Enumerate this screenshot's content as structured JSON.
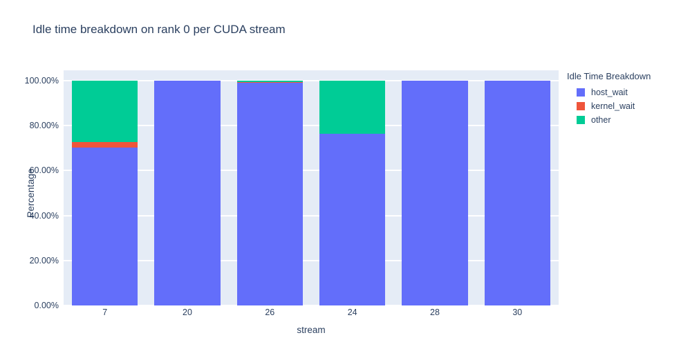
{
  "chart_data": {
    "type": "bar",
    "barmode": "stacked-percent",
    "title": "Idle time breakdown on rank 0 per CUDA stream",
    "xlabel": "stream",
    "ylabel": "Percentage",
    "legend_title": "Idle Time Breakdown",
    "legend_position": "right",
    "grid": true,
    "plot_bg_color": "#E5ECF6",
    "gridline_color": "#ffffff",
    "text_color": "#2a3f5f",
    "ylim": [
      0,
      103.7
    ],
    "yticks": [
      {
        "value": 0,
        "label": "0.00%"
      },
      {
        "value": 20,
        "label": "20.00%"
      },
      {
        "value": 40,
        "label": "40.00%"
      },
      {
        "value": 60,
        "label": "60.00%"
      },
      {
        "value": 80,
        "label": "80.00%"
      },
      {
        "value": 100,
        "label": "100.00%"
      }
    ],
    "categories": [
      "7",
      "20",
      "26",
      "24",
      "28",
      "30"
    ],
    "series": [
      {
        "name": "host_wait",
        "color": "#636EFA",
        "values": [
          70.1,
          100,
          99.1,
          76.3,
          100,
          100
        ]
      },
      {
        "name": "kernel_wait",
        "color": "#EF553B",
        "values": [
          2.5,
          0,
          0.3,
          0,
          0,
          0
        ]
      },
      {
        "name": "other",
        "color": "#00CC96",
        "values": [
          27.4,
          0,
          0.6,
          23.7,
          0,
          0
        ]
      }
    ]
  }
}
